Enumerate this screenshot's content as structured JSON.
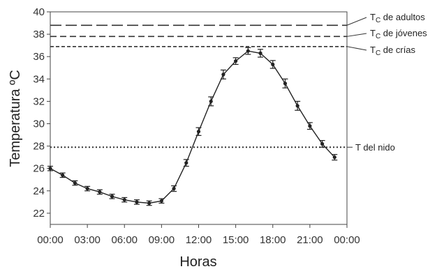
{
  "chart_data": {
    "type": "line",
    "xlabel": "Horas",
    "ylabel": "Temperatura ºC",
    "xlim": [
      0,
      24
    ],
    "ylim": [
      21,
      40
    ],
    "x_ticks": [
      0,
      3,
      6,
      9,
      12,
      15,
      18,
      21,
      24
    ],
    "x_tick_labels": [
      "00:00",
      "03:00",
      "06:00",
      "09:00",
      "12:00",
      "15:00",
      "18:00",
      "21:00",
      "00:00"
    ],
    "y_ticks": [
      22,
      24,
      26,
      28,
      30,
      32,
      34,
      36,
      38,
      40
    ],
    "grid": false,
    "series": [
      {
        "x": [
          0,
          1,
          2,
          3,
          4,
          5,
          6,
          7,
          8,
          9,
          10,
          11,
          12,
          13,
          14,
          15,
          16,
          17,
          18,
          19,
          20,
          21,
          22,
          23
        ],
        "y": [
          26.0,
          25.4,
          24.7,
          24.2,
          23.9,
          23.5,
          23.2,
          23.0,
          22.9,
          23.1,
          24.2,
          26.5,
          29.3,
          32.0,
          34.4,
          35.6,
          36.5,
          36.3,
          35.3,
          33.6,
          31.6,
          29.8,
          28.2,
          27.0
        ],
        "error": [
          0.2,
          0.2,
          0.2,
          0.2,
          0.2,
          0.2,
          0.2,
          0.2,
          0.2,
          0.2,
          0.25,
          0.3,
          0.35,
          0.4,
          0.4,
          0.3,
          0.3,
          0.35,
          0.35,
          0.4,
          0.4,
          0.3,
          0.3,
          0.25
        ]
      }
    ],
    "reference_lines": [
      {
        "y": 38.8,
        "style": "long-dash",
        "label_main": "T",
        "label_sub": "C",
        "label_rest": " de adultos"
      },
      {
        "y": 37.8,
        "style": "dash",
        "label_main": "T",
        "label_sub": "C",
        "label_rest": " de jóvenes"
      },
      {
        "y": 36.9,
        "style": "short-dash",
        "label_main": "T",
        "label_sub": "C",
        "label_rest": " de crías"
      },
      {
        "y": 27.9,
        "style": "dotted",
        "label_main": "T del nido",
        "label_sub": "",
        "label_rest": ""
      }
    ]
  }
}
